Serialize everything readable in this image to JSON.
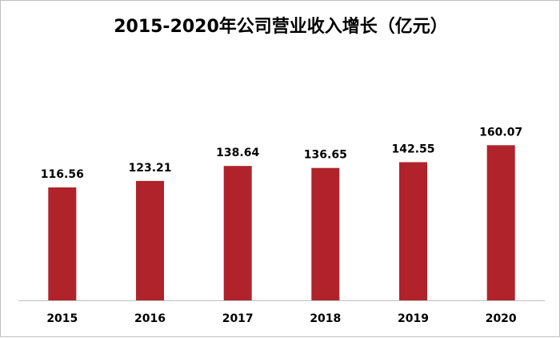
{
  "chart_data": {
    "type": "bar",
    "title": "2015-2020年公司营业收入增长（亿元）",
    "categories": [
      "2015",
      "2016",
      "2017",
      "2018",
      "2019",
      "2020"
    ],
    "values": [
      116.56,
      123.21,
      138.64,
      136.65,
      142.55,
      160.07
    ],
    "value_labels": [
      "116.56",
      "123.21",
      "138.64",
      "136.65",
      "142.55",
      "160.07"
    ],
    "xlabel": "",
    "ylabel": "",
    "ylim": [
      0,
      180
    ],
    "grid": false,
    "legend": "none",
    "colors": {
      "bar": "#b0232a",
      "axis": "#bfbfbf",
      "text": "#000000"
    }
  }
}
